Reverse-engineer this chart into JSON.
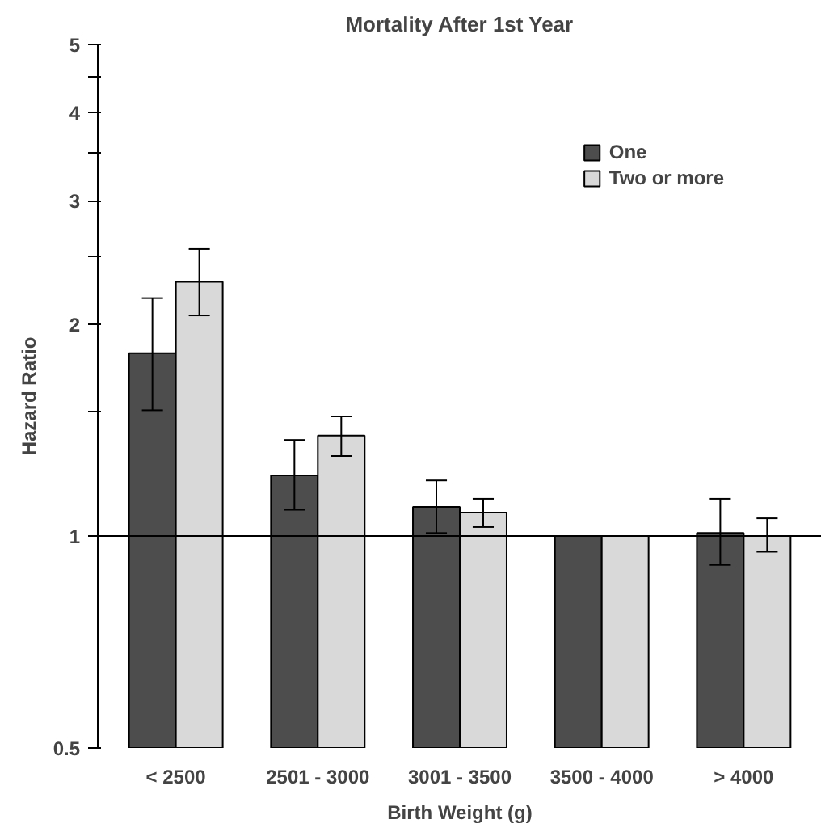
{
  "chart_data": {
    "type": "bar",
    "title": "Mortality After 1st Year",
    "xlabel": "Birth Weight (g)",
    "ylabel": "Hazard Ratio",
    "categories": [
      "< 2500",
      "2501 - 3000",
      "3001 - 3500",
      "3500 - 4000",
      "> 4000"
    ],
    "series": [
      {
        "name": "One",
        "color": "#4d4d4d",
        "values": [
          1.82,
          1.22,
          1.1,
          1.0,
          1.01
        ],
        "errors": [
          [
            1.51,
            2.18
          ],
          [
            1.09,
            1.37
          ],
          [
            1.01,
            1.2
          ],
          null,
          [
            0.91,
            1.13
          ]
        ]
      },
      {
        "name": "Two or more",
        "color": "#d9d9d9",
        "values": [
          2.3,
          1.39,
          1.08,
          1.0,
          1.0
        ],
        "errors": [
          [
            2.06,
            2.56
          ],
          [
            1.3,
            1.48
          ],
          [
            1.03,
            1.13
          ],
          null,
          [
            0.95,
            1.06
          ]
        ]
      }
    ],
    "log": "y",
    "ylim": [
      0.5,
      5
    ],
    "yticks": [
      0.5,
      1,
      {
        "value": 1.5,
        "label": null
      },
      2,
      {
        "value": 2.5,
        "label": null
      },
      3,
      {
        "value": 3.5,
        "label": null
      },
      4,
      {
        "value": 4.5,
        "label": null
      },
      5
    ],
    "ref_lines": [
      {
        "axis": "y",
        "value": 1,
        "color": "#000000"
      }
    ],
    "grid": false,
    "legend": "top right"
  }
}
